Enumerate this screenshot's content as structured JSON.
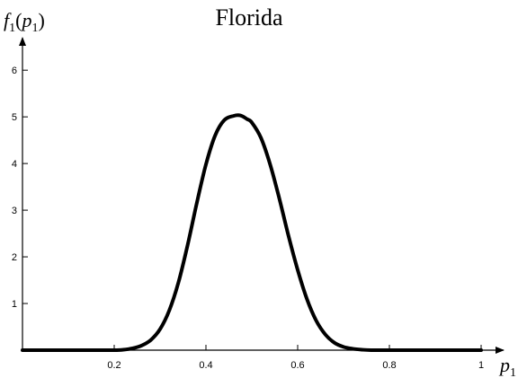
{
  "chart_data": {
    "type": "line",
    "title": "Florida",
    "ylabel": "f1(p1)",
    "xlabel": "p1",
    "xlim": [
      0,
      1
    ],
    "ylim": [
      0,
      6.6
    ],
    "x_ticks": [
      0.2,
      0.4,
      0.6,
      0.8,
      1
    ],
    "y_ticks": [
      1,
      2,
      3,
      4,
      5,
      6
    ],
    "x_tick_labels": [
      "0.2",
      "0.4",
      "0.6",
      "0.8",
      "1"
    ],
    "y_tick_labels": [
      "1",
      "2",
      "3",
      "4",
      "5",
      "6"
    ],
    "grid": false,
    "legend": "none",
    "series": [
      {
        "x": [
          0.0,
          0.05,
          0.1,
          0.15,
          0.2,
          0.22,
          0.24,
          0.26,
          0.28,
          0.3,
          0.32,
          0.34,
          0.36,
          0.38,
          0.4,
          0.42,
          0.44,
          0.46,
          0.475,
          0.49,
          0.5,
          0.52,
          0.54,
          0.56,
          0.58,
          0.6,
          0.62,
          0.64,
          0.66,
          0.68,
          0.7,
          0.72,
          0.74,
          0.76,
          0.8,
          0.85,
          0.9,
          1.0
        ],
        "y": [
          0.0,
          0.0,
          0.0,
          0.0,
          0.0,
          0.01,
          0.04,
          0.1,
          0.22,
          0.45,
          0.85,
          1.45,
          2.25,
          3.15,
          3.98,
          4.6,
          4.93,
          5.02,
          5.03,
          4.95,
          4.88,
          4.55,
          3.98,
          3.25,
          2.45,
          1.72,
          1.1,
          0.64,
          0.34,
          0.16,
          0.07,
          0.03,
          0.01,
          0.0,
          0.0,
          0.0,
          0.0,
          0.0
        ]
      }
    ]
  }
}
